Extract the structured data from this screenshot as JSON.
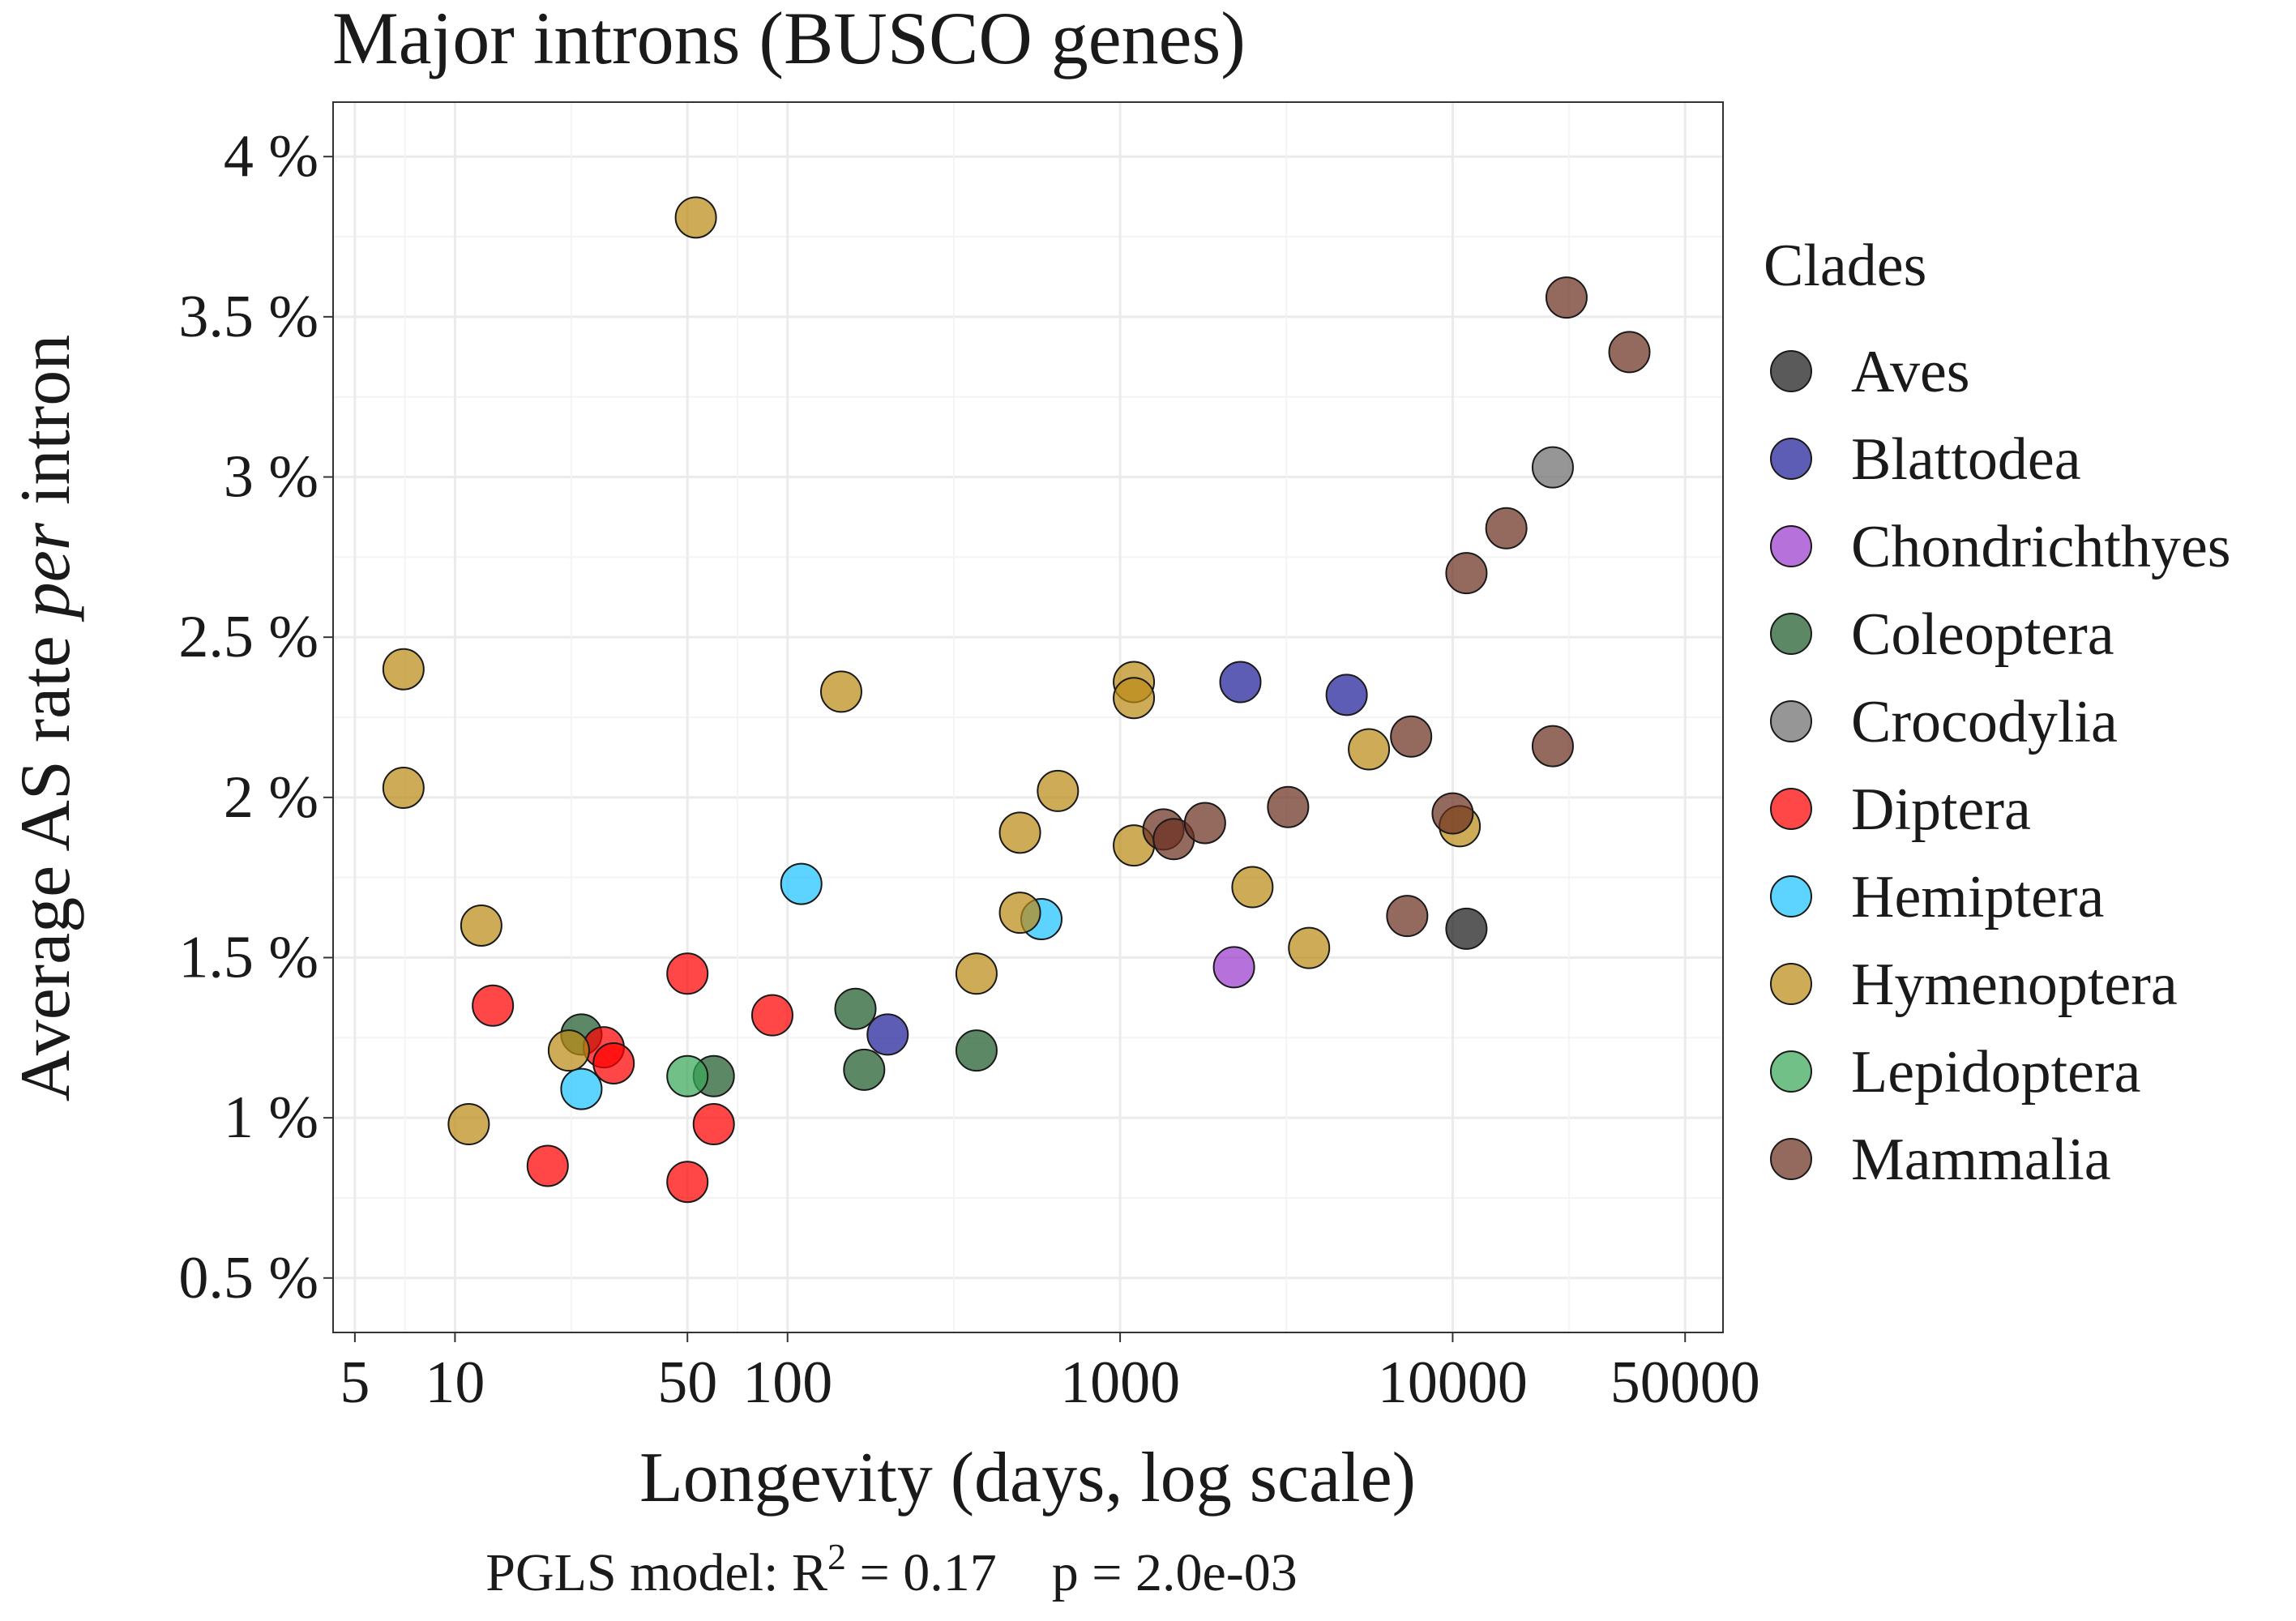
{
  "chart_data": {
    "type": "scatter",
    "title": "Major introns (BUSCO genes)",
    "xlabel": "Longevity (days, log scale)",
    "ylabel": {
      "before": "Average AS rate ",
      "italic": "per",
      "after": " intron"
    },
    "x_scale": "log10",
    "xlim": [
      4.3,
      65000
    ],
    "ylim": [
      0.33,
      4.17
    ],
    "x_ticks": [
      {
        "value": 5,
        "label": "5"
      },
      {
        "value": 10,
        "label": "10"
      },
      {
        "value": 50,
        "label": "50"
      },
      {
        "value": 100,
        "label": "100"
      },
      {
        "value": 1000,
        "label": "1000"
      },
      {
        "value": 10000,
        "label": "10000"
      },
      {
        "value": 50000,
        "label": "50000"
      }
    ],
    "y_ticks": [
      {
        "value": 0.5,
        "label": "0.5 %"
      },
      {
        "value": 1,
        "label": "1 %"
      },
      {
        "value": 1.5,
        "label": "1.5 %"
      },
      {
        "value": 2,
        "label": "2 %"
      },
      {
        "value": 2.5,
        "label": "2.5 %"
      },
      {
        "value": 3,
        "label": "3 %"
      },
      {
        "value": 3.5,
        "label": "3.5 %"
      },
      {
        "value": 4,
        "label": "4 %"
      }
    ],
    "grid": true,
    "legend_title": "Clades",
    "legend_position": "right",
    "annotation": {
      "prefix": "PGLS model: R",
      "sup": "2",
      "r2": " = 0.17",
      "p": "p = 2.0e-03"
    },
    "series": [
      {
        "name": "Aves",
        "color": "#1a1a1a",
        "points": [
          [
            11000,
            1.59
          ]
        ]
      },
      {
        "name": "Blattodea",
        "color": "#1f1f99",
        "points": [
          [
            200,
            1.26
          ],
          [
            2300,
            2.36
          ],
          [
            4800,
            2.32
          ]
        ]
      },
      {
        "name": "Chondrichthyes",
        "color": "#9a3ccc",
        "points": [
          [
            2200,
            1.47
          ]
        ]
      },
      {
        "name": "Coleoptera",
        "color": "#1f5a2a",
        "points": [
          [
            24,
            1.26
          ],
          [
            60,
            1.13
          ],
          [
            160,
            1.34
          ],
          [
            170,
            1.15
          ],
          [
            370,
            1.21
          ]
        ]
      },
      {
        "name": "Crocodylia",
        "color": "#6e6e6e",
        "points": [
          [
            20000,
            3.03
          ]
        ]
      },
      {
        "name": "Diptera",
        "color": "#ff0000",
        "points": [
          [
            13,
            1.35
          ],
          [
            19,
            0.85
          ],
          [
            28,
            1.22
          ],
          [
            30,
            1.17
          ],
          [
            50,
            1.45
          ],
          [
            50,
            0.8
          ],
          [
            60,
            0.98
          ],
          [
            90,
            1.32
          ]
        ]
      },
      {
        "name": "Hemiptera",
        "color": "#1fc3ff",
        "points": [
          [
            24,
            1.09
          ],
          [
            110,
            1.73
          ],
          [
            580,
            1.62
          ]
        ]
      },
      {
        "name": "Hymenoptera",
        "color": "#bb8b16",
        "points": [
          [
            7,
            2.4
          ],
          [
            7,
            2.03
          ],
          [
            11,
            0.98
          ],
          [
            12,
            1.6
          ],
          [
            22,
            1.21
          ],
          [
            53,
            3.81
          ],
          [
            145,
            2.33
          ],
          [
            370,
            1.45
          ],
          [
            500,
            1.89
          ],
          [
            500,
            1.64
          ],
          [
            650,
            2.02
          ],
          [
            1100,
            2.36
          ],
          [
            1100,
            2.31
          ],
          [
            1100,
            1.85
          ],
          [
            2500,
            1.72
          ],
          [
            3700,
            1.53
          ],
          [
            5600,
            2.15
          ],
          [
            10500,
            1.91
          ]
        ]
      },
      {
        "name": "Lepidoptera",
        "color": "#3aa85a",
        "points": [
          [
            50,
            1.13
          ]
        ]
      },
      {
        "name": "Mammalia",
        "color": "#6b2f20",
        "points": [
          [
            1350,
            1.9
          ],
          [
            1450,
            1.87
          ],
          [
            1800,
            1.92
          ],
          [
            3200,
            1.97
          ],
          [
            7300,
            1.63
          ],
          [
            7500,
            2.19
          ],
          [
            10000,
            1.95
          ],
          [
            11000,
            2.7
          ],
          [
            14500,
            2.84
          ],
          [
            20000,
            2.16
          ],
          [
            22000,
            3.56
          ],
          [
            34000,
            3.39
          ]
        ]
      }
    ]
  }
}
